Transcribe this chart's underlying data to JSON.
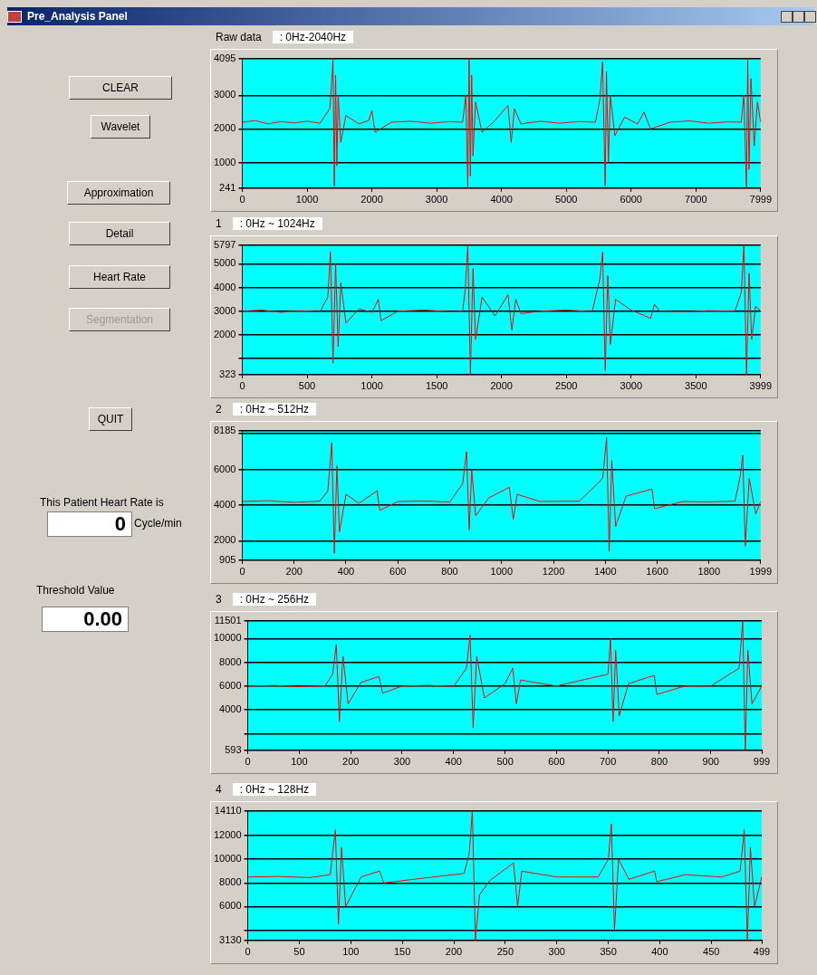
{
  "chart_data": [
    {
      "type": "other",
      "title": "Pre_Analysis Panel",
      "annotations": [
        "CLEAR",
        "Wavelet",
        "Approximation",
        "Detail",
        "Heart Rate",
        "Segmentation",
        "QUIT",
        "This Patient Heart Rate is",
        "0",
        "Cycle/min",
        "Threshold Value",
        "0.00"
      ]
    },
    {
      "type": "line",
      "title": "Raw data",
      "subtitle": ": 0Hz-2040Hz",
      "xlim": [
        0,
        7999
      ],
      "xticks": [
        0,
        1000,
        2000,
        3000,
        4000,
        5000,
        6000,
        7000,
        7999
      ],
      "ylim": [
        241,
        4095
      ],
      "yticks": [
        241,
        1000,
        2000,
        3000,
        4095
      ],
      "grid": "y",
      "legend": false,
      "marker": "none",
      "series": [
        {
          "color": "#ff0000",
          "x": [
            0,
            200,
            400,
            600,
            800,
            1000,
            1200,
            1350,
            1380,
            1400,
            1420,
            1440,
            1460,
            1480,
            1520,
            1600,
            1800,
            1950,
            2000,
            2050,
            2300,
            2600,
            2900,
            3200,
            3400,
            3450,
            3480,
            3500,
            3520,
            3540,
            3560,
            3600,
            3700,
            3900,
            4100,
            4150,
            4200,
            4300,
            4600,
            4900,
            5200,
            5450,
            5520,
            5560,
            5600,
            5620,
            5650,
            5680,
            5750,
            5900,
            6100,
            6200,
            6300,
            6600,
            6900,
            7200,
            7500,
            7700,
            7740,
            7780,
            7800,
            7820,
            7850,
            7900,
            7950,
            7999
          ],
          "values": [
            2200,
            2250,
            2150,
            2220,
            2180,
            2230,
            2170,
            2600,
            3400,
            4095,
            300,
            3600,
            900,
            3000,
            1600,
            2400,
            2150,
            2250,
            2550,
            1900,
            2200,
            2230,
            2170,
            2220,
            2200,
            3000,
            241,
            4095,
            600,
            3600,
            1200,
            2800,
            1900,
            2250,
            2700,
            1600,
            2600,
            2150,
            2230,
            2170,
            2220,
            2200,
            2900,
            4000,
            300,
            3700,
            1000,
            3000,
            1800,
            2350,
            2150,
            2500,
            2000,
            2200,
            2240,
            2170,
            2210,
            2200,
            3000,
            241,
            4095,
            800,
            3500,
            1500,
            2800,
            2200
          ]
        }
      ]
    },
    {
      "type": "line",
      "title": "1",
      "subtitle": ": 0Hz ~ 1024Hz",
      "xlim": [
        0,
        3999
      ],
      "xticks": [
        0,
        500,
        1000,
        1500,
        2000,
        2500,
        3000,
        3500,
        3999
      ],
      "ylim": [
        323,
        5797
      ],
      "yticks": [
        323,
        {
          "value": 1000,
          "label": null
        },
        2000,
        3000,
        4000,
        5000,
        5797
      ],
      "grid": "y",
      "legend": false,
      "marker": "none",
      "series": [
        {
          "color": "#ff0000",
          "x": [
            0,
            150,
            300,
            450,
            600,
            660,
            680,
            700,
            720,
            740,
            760,
            800,
            900,
            1000,
            1050,
            1070,
            1200,
            1400,
            1600,
            1700,
            1720,
            1740,
            1760,
            1780,
            1800,
            1850,
            1950,
            2050,
            2080,
            2110,
            2150,
            2300,
            2500,
            2700,
            2760,
            2780,
            2800,
            2820,
            2840,
            2880,
            3000,
            3150,
            3180,
            3220,
            3400,
            3600,
            3800,
            3850,
            3870,
            3890,
            3910,
            3930,
            3960,
            3999
          ],
          "values": [
            3000,
            3050,
            2950,
            3020,
            2980,
            3600,
            5500,
            800,
            5000,
            1500,
            4200,
            2500,
            3100,
            2950,
            3500,
            2600,
            3000,
            3050,
            2980,
            3000,
            3900,
            5797,
            323,
            4800,
            1800,
            3600,
            2800,
            3700,
            2200,
            3500,
            2900,
            3000,
            3050,
            2980,
            4400,
            5500,
            500,
            4500,
            1600,
            3500,
            3050,
            2700,
            3300,
            3000,
            2970,
            3020,
            3000,
            3800,
            5797,
            323,
            4600,
            1800,
            3200,
            3000
          ]
        }
      ]
    },
    {
      "type": "line",
      "title": "2",
      "subtitle": ": 0Hz ~ 512Hz",
      "xlim": [
        0,
        1999
      ],
      "xticks": [
        0,
        200,
        400,
        600,
        800,
        1000,
        1200,
        1400,
        1600,
        1800,
        1999
      ],
      "ylim": [
        905,
        8185
      ],
      "yticks": [
        905,
        2000,
        4000,
        6000,
        {
          "value": 8000,
          "label": null
        },
        8185
      ],
      "grid": "y",
      "legend": false,
      "marker": "none",
      "series": [
        {
          "color": "#ff0000",
          "x": [
            0,
            100,
            200,
            300,
            330,
            345,
            355,
            365,
            375,
            400,
            450,
            520,
            530,
            600,
            700,
            800,
            850,
            865,
            875,
            885,
            900,
            950,
            1030,
            1045,
            1060,
            1150,
            1300,
            1390,
            1405,
            1415,
            1425,
            1440,
            1480,
            1580,
            1590,
            1700,
            1800,
            1900,
            1920,
            1930,
            1940,
            1955,
            1980,
            1999
          ],
          "values": [
            4200,
            4250,
            4150,
            4220,
            4800,
            7500,
            1300,
            6200,
            2500,
            4600,
            4100,
            4800,
            3700,
            4200,
            4230,
            4170,
            5200,
            7000,
            2600,
            6000,
            3400,
            4400,
            5000,
            3200,
            4600,
            4200,
            4220,
            5500,
            7800,
            1400,
            6500,
            2800,
            4500,
            4900,
            3800,
            4200,
            4180,
            4220,
            5600,
            6800,
            1700,
            5500,
            3500,
            4200
          ]
        }
      ]
    },
    {
      "type": "line",
      "title": "3",
      "subtitle": ": 0Hz ~ 256Hz",
      "xlim": [
        0,
        999
      ],
      "xticks": [
        0,
        100,
        200,
        300,
        400,
        500,
        600,
        700,
        800,
        900,
        999
      ],
      "ylim": [
        593,
        11501
      ],
      "yticks": [
        593,
        {
          "value": 2000,
          "label": null
        },
        4000,
        6000,
        8000,
        10000,
        11501
      ],
      "grid": "y",
      "legend": false,
      "marker": "none",
      "series": [
        {
          "color": "#ff0000",
          "x": [
            0,
            50,
            100,
            150,
            165,
            172,
            178,
            185,
            195,
            220,
            255,
            262,
            300,
            350,
            400,
            425,
            432,
            438,
            445,
            460,
            500,
            515,
            522,
            530,
            600,
            700,
            705,
            710,
            715,
            722,
            740,
            790,
            795,
            850,
            900,
            955,
            962,
            967,
            972,
            980,
            999
          ],
          "values": [
            6000,
            6050,
            5950,
            6020,
            7000,
            9500,
            3000,
            8500,
            4500,
            6300,
            6800,
            5400,
            6000,
            6050,
            5980,
            7500,
            10300,
            2500,
            8500,
            5000,
            6200,
            7500,
            4500,
            6500,
            6000,
            7000,
            10000,
            3000,
            9000,
            3500,
            6200,
            6900,
            5300,
            6000,
            6000,
            7500,
            11501,
            593,
            9000,
            4500,
            6000
          ]
        }
      ]
    },
    {
      "type": "line",
      "title": "4",
      "subtitle": ": 0Hz ~ 128Hz",
      "xlim": [
        0,
        499
      ],
      "xticks": [
        0,
        50,
        100,
        150,
        200,
        250,
        300,
        350,
        400,
        450,
        499
      ],
      "ylim": [
        3130,
        14110
      ],
      "yticks": [
        3130,
        {
          "value": 4000,
          "label": null
        },
        6000,
        8000,
        10000,
        12000,
        14110
      ],
      "grid": "y",
      "legend": false,
      "marker": "none",
      "series": [
        {
          "color": "#ff0000",
          "x": [
            0,
            30,
            60,
            80,
            85,
            88,
            91,
            95,
            110,
            128,
            132,
            180,
            210,
            215,
            218,
            221,
            225,
            235,
            258,
            262,
            266,
            300,
            340,
            350,
            353,
            356,
            360,
            370,
            395,
            397,
            425,
            460,
            478,
            482,
            485,
            488,
            492,
            499
          ],
          "values": [
            8500,
            8550,
            8450,
            8700,
            12500,
            4500,
            11000,
            6000,
            8500,
            9000,
            8000,
            8500,
            8800,
            10500,
            14110,
            3130,
            7000,
            8200,
            9700,
            6000,
            9000,
            8500,
            8500,
            10000,
            13000,
            4000,
            10000,
            8300,
            9000,
            8100,
            8700,
            8500,
            9000,
            12500,
            3130,
            11000,
            6000,
            8500
          ]
        }
      ]
    }
  ]
}
